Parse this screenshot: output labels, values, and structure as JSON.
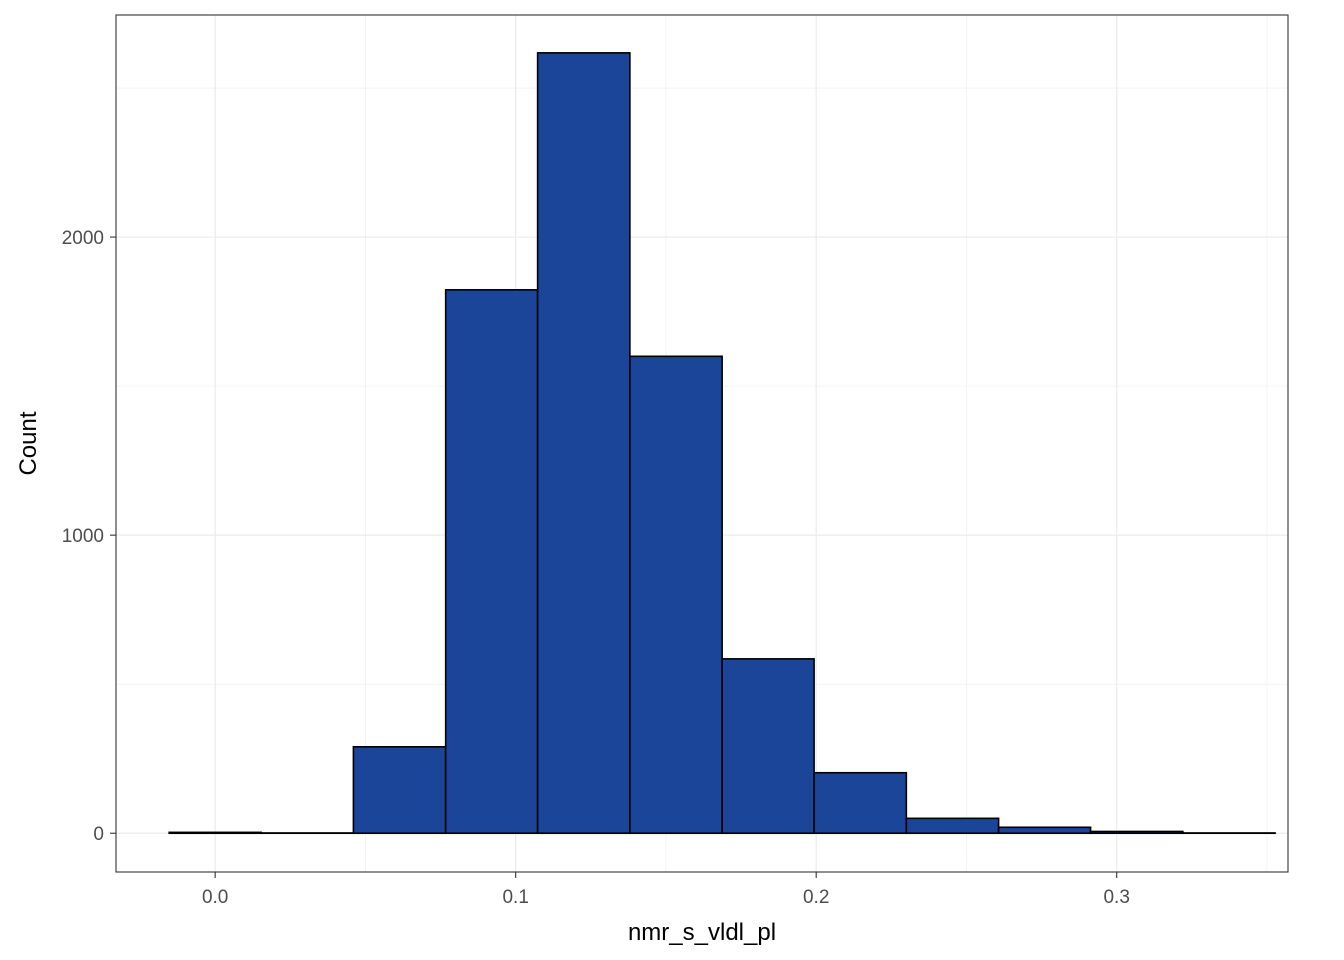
{
  "chart_data": {
    "type": "bar",
    "subtype": "histogram",
    "title": "",
    "xlabel": "nmr_s_vldl_pl",
    "ylabel": "Count",
    "xlim": [
      -0.033,
      0.357
    ],
    "ylim": [
      -130,
      2745
    ],
    "x_ticks": [
      0.0,
      0.1,
      0.2,
      0.3
    ],
    "x_tick_labels": [
      "0.0",
      "0.1",
      "0.2",
      "0.3"
    ],
    "y_ticks": [
      0,
      1000,
      2000
    ],
    "y_tick_labels": [
      "0",
      "1000",
      "2000"
    ],
    "bins": [
      {
        "x0": -0.0153,
        "x1": 0.0153,
        "count": 3
      },
      {
        "x0": 0.0153,
        "x1": 0.046,
        "count": 1
      },
      {
        "x0": 0.046,
        "x1": 0.0767,
        "count": 290
      },
      {
        "x0": 0.0767,
        "x1": 0.1073,
        "count": 1823
      },
      {
        "x0": 0.1073,
        "x1": 0.138,
        "count": 2618
      },
      {
        "x0": 0.138,
        "x1": 0.1687,
        "count": 1600
      },
      {
        "x0": 0.1687,
        "x1": 0.1993,
        "count": 585
      },
      {
        "x0": 0.1993,
        "x1": 0.23,
        "count": 203
      },
      {
        "x0": 0.23,
        "x1": 0.2607,
        "count": 50
      },
      {
        "x0": 0.2607,
        "x1": 0.2913,
        "count": 20
      },
      {
        "x0": 0.2913,
        "x1": 0.322,
        "count": 6
      },
      {
        "x0": 0.322,
        "x1": 0.3527,
        "count": 1
      }
    ],
    "fill_color": "#1a4599",
    "edge_color": "#000000",
    "grid": true,
    "grid_color": "#ebebeb",
    "panel_border_color": "#333333",
    "legend": "none"
  }
}
